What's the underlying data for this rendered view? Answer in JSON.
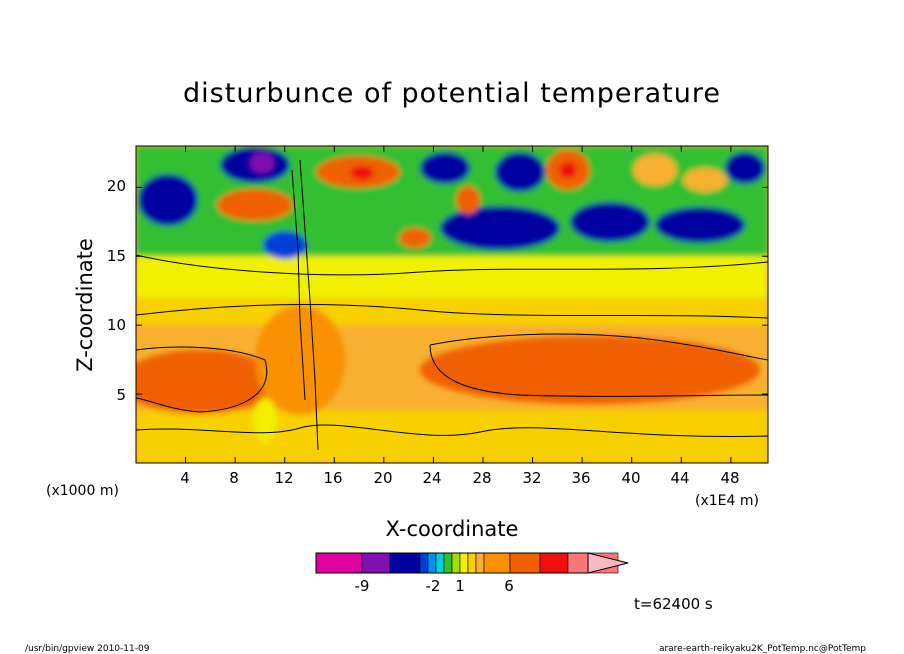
{
  "chart_data": {
    "type": "heatmap",
    "title": "disturbunce of potential temperature",
    "xlabel": "X-coordinate",
    "ylabel": "Z-coordinate",
    "x_scale_label": "(x1E4 m)",
    "y_scale_label": "(x1000 m)",
    "x_ticks": [
      "4",
      "8",
      "12",
      "16",
      "20",
      "24",
      "28",
      "32",
      "36",
      "40",
      "44",
      "48"
    ],
    "y_ticks": [
      "5",
      "10",
      "15",
      "20"
    ],
    "xlim": [
      0,
      51
    ],
    "ylim": [
      0,
      23
    ],
    "grid": false,
    "colorbar": {
      "labels": [
        "-9",
        "-2",
        "1",
        "6"
      ],
      "colors": [
        "#e000a0",
        "#8010b0",
        "#0000a0",
        "#0040d8",
        "#0090f0",
        "#00d0e0",
        "#30c030",
        "#a0e000",
        "#f0f000",
        "#f8d000",
        "#f8b030",
        "#f89000",
        "#f06000",
        "#f01010",
        "#f87878",
        "#f8b8c0"
      ]
    },
    "annotation": "t=62400 s",
    "field_description": {
      "lower_layer": "warm disturbance (orange) bands near z=5-8 with yellow/light orange elsewhere",
      "upper_layer": "alternating cold (blue/purple) and warm (orange/red) cells above z=15"
    }
  },
  "footer": {
    "left": "/usr/bin/gpview   2010-11-09",
    "right": "arare-earth-reikyaku2K_PotTemp.nc@PotTemp"
  }
}
